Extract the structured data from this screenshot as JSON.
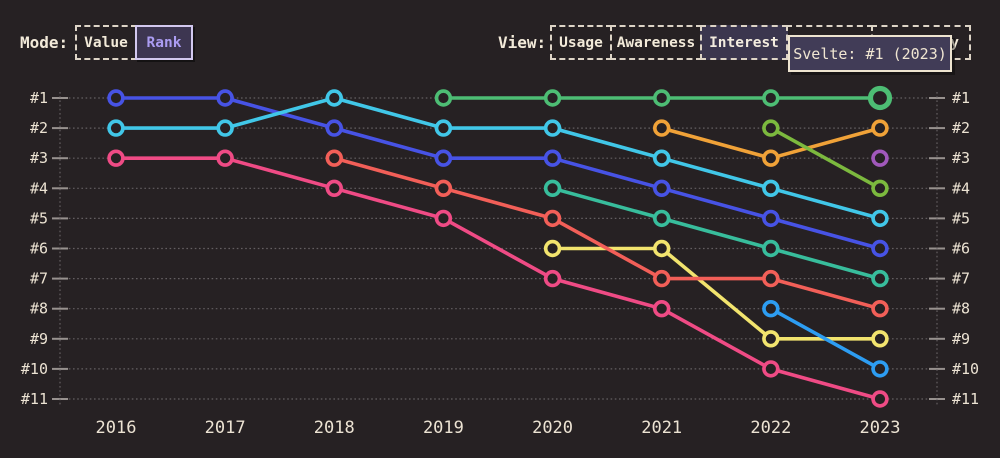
{
  "colors": {
    "background": "#262123",
    "text": "#ece3d3",
    "grid": "#6f6a6d",
    "tick": "#98928f",
    "selected_mode_bg": "#3d3651",
    "selected_mode_text": "#ab9cf2",
    "selected_view_bg": "#3b364e",
    "tooltip_bg": "#413c57",
    "tooltip_border": "#eee4d0"
  },
  "controls": {
    "mode": {
      "label": "Mode:",
      "options": [
        {
          "label": "Value",
          "selected": false
        },
        {
          "label": "Rank",
          "selected": true
        }
      ]
    },
    "view": {
      "label": "View:",
      "options": [
        {
          "label": "Usage",
          "selected": false
        },
        {
          "label": "Awareness",
          "selected": false
        },
        {
          "label": "Interest",
          "selected": true
        },
        {
          "label": "",
          "selected": false,
          "obscured_by_tooltip": true
        },
        {
          "label": "ty",
          "selected": false,
          "obscured_by_tooltip": true,
          "note": "only trailing letters visible"
        }
      ]
    }
  },
  "tooltip": {
    "text": "Svelte: #1 (2023)"
  },
  "chart_data": {
    "type": "line",
    "subtype": "bump-rank-chart",
    "x": [
      2016,
      2017,
      2018,
      2019,
      2020,
      2021,
      2022,
      2023
    ],
    "y_axis_labels": [
      "#1",
      "#2",
      "#3",
      "#4",
      "#5",
      "#6",
      "#7",
      "#8",
      "#9",
      "#10",
      "#11"
    ],
    "ylim": [
      1,
      11
    ],
    "grid": "dotted horizontal rows, dotted vertical axis lines both sides",
    "legend_position": "none",
    "series": [
      {
        "id": "indigo",
        "color": "#4753e5",
        "points": [
          [
            2016,
            1
          ],
          [
            2017,
            1
          ],
          [
            2018,
            2
          ],
          [
            2019,
            3
          ],
          [
            2020,
            3
          ],
          [
            2021,
            4
          ],
          [
            2022,
            5
          ],
          [
            2023,
            6
          ]
        ]
      },
      {
        "id": "cyan",
        "color": "#41c7e8",
        "points": [
          [
            2016,
            2
          ],
          [
            2017,
            2
          ],
          [
            2018,
            1
          ],
          [
            2019,
            2
          ],
          [
            2020,
            2
          ],
          [
            2021,
            3
          ],
          [
            2022,
            4
          ],
          [
            2023,
            5
          ]
        ]
      },
      {
        "id": "pink",
        "color": "#ef4b85",
        "points": [
          [
            2016,
            3
          ],
          [
            2017,
            3
          ],
          [
            2018,
            4
          ],
          [
            2019,
            5
          ],
          [
            2020,
            7
          ],
          [
            2021,
            8
          ],
          [
            2022,
            10
          ],
          [
            2023,
            11
          ]
        ]
      },
      {
        "id": "yellow",
        "color": "#f2e46e",
        "points": [
          [
            2020,
            6
          ],
          [
            2021,
            6
          ],
          [
            2022,
            9
          ],
          [
            2023,
            9
          ]
        ]
      },
      {
        "id": "salmon",
        "color": "#f25f58",
        "points": [
          [
            2018,
            3
          ],
          [
            2019,
            4
          ],
          [
            2020,
            5
          ],
          [
            2021,
            7
          ],
          [
            2022,
            7
          ],
          [
            2023,
            8
          ]
        ]
      },
      {
        "id": "teal",
        "color": "#38bd9c",
        "points": [
          [
            2020,
            4
          ],
          [
            2021,
            5
          ],
          [
            2022,
            6
          ],
          [
            2023,
            7
          ]
        ]
      },
      {
        "id": "orange",
        "color": "#f0a238",
        "points": [
          [
            2021,
            2
          ],
          [
            2022,
            3
          ],
          [
            2023,
            2
          ]
        ]
      },
      {
        "id": "olive-green",
        "color": "#7cb93e",
        "points": [
          [
            2022,
            2
          ],
          [
            2023,
            4
          ]
        ]
      },
      {
        "id": "bright-blue",
        "color": "#2d9df2",
        "points": [
          [
            2022,
            8
          ],
          [
            2023,
            10
          ]
        ]
      },
      {
        "id": "purple",
        "color": "#a158bb",
        "points": [
          [
            2023,
            3
          ]
        ]
      },
      {
        "id": "svelte",
        "color": "#4dbd74",
        "points": [
          [
            2019,
            1
          ],
          [
            2020,
            1
          ],
          [
            2021,
            1
          ],
          [
            2022,
            1
          ],
          [
            2023,
            1
          ]
        ],
        "highlight": [
          2023,
          1
        ]
      }
    ],
    "highlighted_point": {
      "series": "svelte",
      "year": 2023,
      "rank": 1,
      "tooltip": "Svelte: #1 (2023)"
    }
  }
}
